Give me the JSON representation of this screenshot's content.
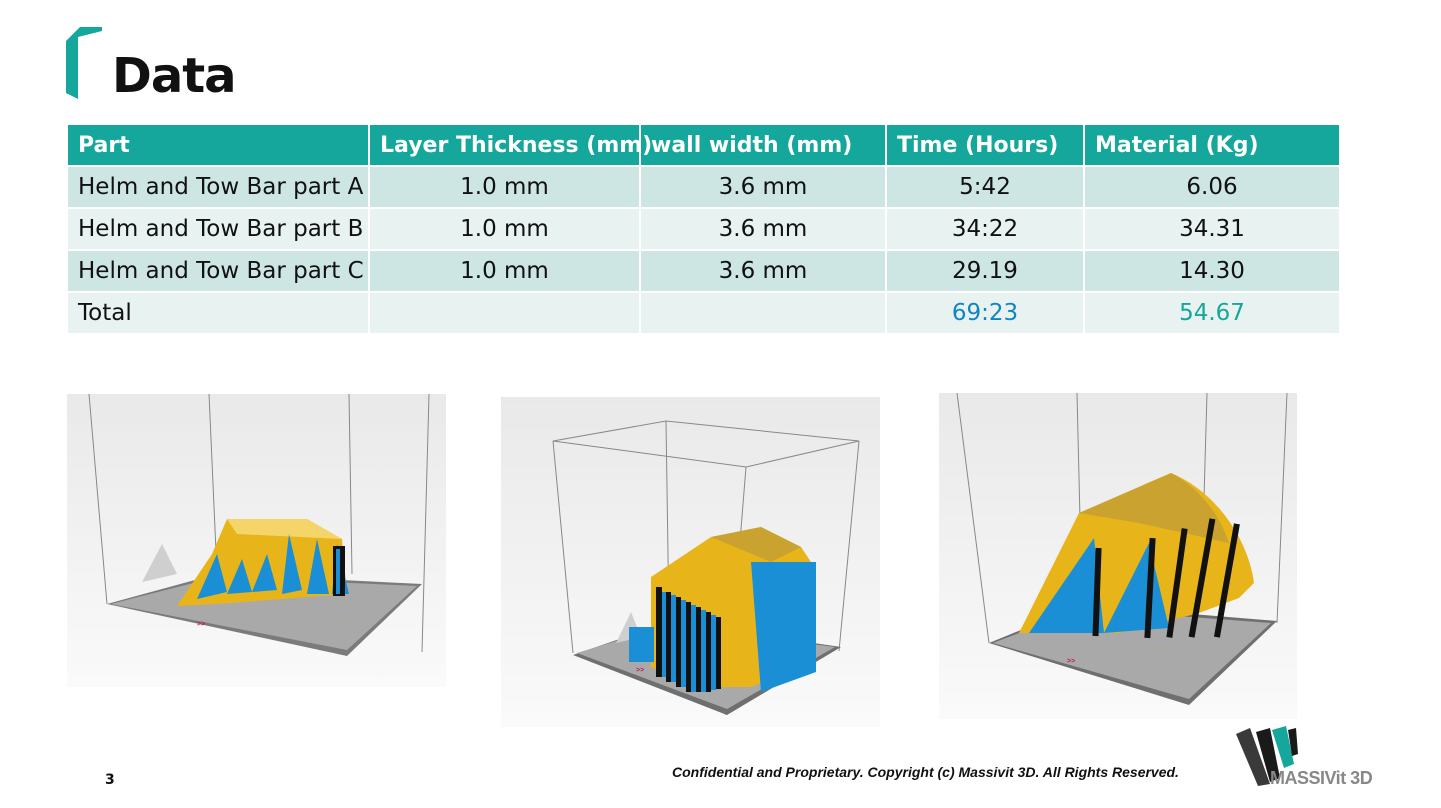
{
  "slide": {
    "title": "Data",
    "page_number": "3",
    "footer": "Confidential and Proprietary. Copyright (c) Massivit 3D. All Rights Reserved.",
    "logo_text": "MASSIVit 3D"
  },
  "table": {
    "headers": [
      "Part",
      "Layer Thickness (mm)",
      "wall width (mm)",
      "Time (Hours)",
      "Material (Kg)"
    ],
    "rows": [
      [
        "Helm and Tow Bar part A",
        "1.0 mm",
        "3.6 mm",
        "5:42",
        "6.06"
      ],
      [
        "Helm and Tow Bar part B",
        "1.0 mm",
        "3.6 mm",
        "34:22",
        "34.31"
      ],
      [
        "Helm and Tow Bar part C",
        "1.0 mm",
        "3.6 mm",
        "29.19",
        "14.30"
      ],
      [
        "Total",
        "",
        "",
        "69:23",
        "54.67"
      ]
    ]
  },
  "colors": {
    "accent": "#16a79c",
    "time_total": "#0e86c1",
    "part_blue": "#1a8fd6",
    "part_yellow": "#e8c21a"
  },
  "renders": [
    {
      "icon": "part-a-render"
    },
    {
      "icon": "part-b-render"
    },
    {
      "icon": "part-c-render"
    }
  ]
}
